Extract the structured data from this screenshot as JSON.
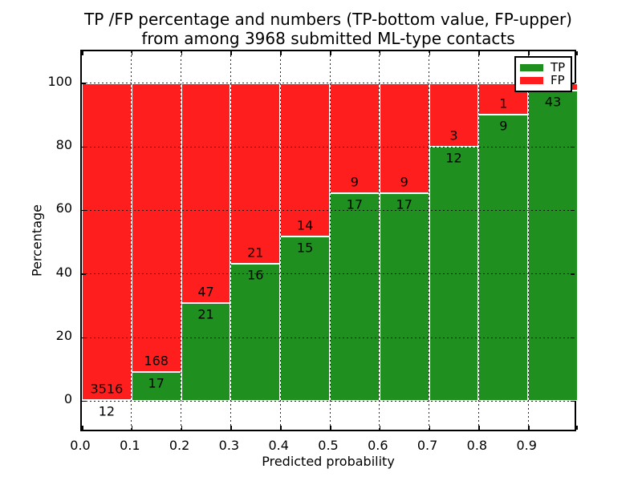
{
  "chart_data": {
    "type": "bar",
    "variant": "stacked-percentage-histogram",
    "title_line1": "TP /FP percentage and numbers (TP-bottom value, FP-upper)",
    "title_line2": "from among 3968 submitted ML-type contacts",
    "xlabel": "Predicted probability",
    "ylabel": "Percentage",
    "total_contacts": 3968,
    "xlim": [
      0.0,
      1.0
    ],
    "ylim": [
      -10,
      110
    ],
    "xticks": [
      "0.0",
      "0.1",
      "0.2",
      "0.3",
      "0.4",
      "0.5",
      "0.6",
      "0.7",
      "0.8",
      "0.9"
    ],
    "yticks": [
      0,
      20,
      40,
      60,
      80,
      100
    ],
    "grid": "dotted",
    "bin_width": 0.1,
    "categories": [
      "0.0-0.1",
      "0.1-0.2",
      "0.2-0.3",
      "0.3-0.4",
      "0.4-0.5",
      "0.5-0.6",
      "0.6-0.7",
      "0.7-0.8",
      "0.8-0.9",
      "0.9-1.0"
    ],
    "series": [
      {
        "name": "TP",
        "color": "#1f8f1f",
        "values": [
          12,
          17,
          21,
          16,
          15,
          17,
          17,
          12,
          9,
          43
        ]
      },
      {
        "name": "FP",
        "color": "#ff1e1e",
        "values": [
          3516,
          168,
          47,
          21,
          14,
          9,
          9,
          3,
          1,
          1
        ]
      }
    ],
    "fp_label_visible": [
      true,
      true,
      true,
      true,
      true,
      true,
      true,
      true,
      true,
      false
    ],
    "tp_label_visible": [
      true,
      true,
      true,
      true,
      true,
      true,
      true,
      true,
      true,
      true
    ],
    "legend_position": "upper right"
  }
}
